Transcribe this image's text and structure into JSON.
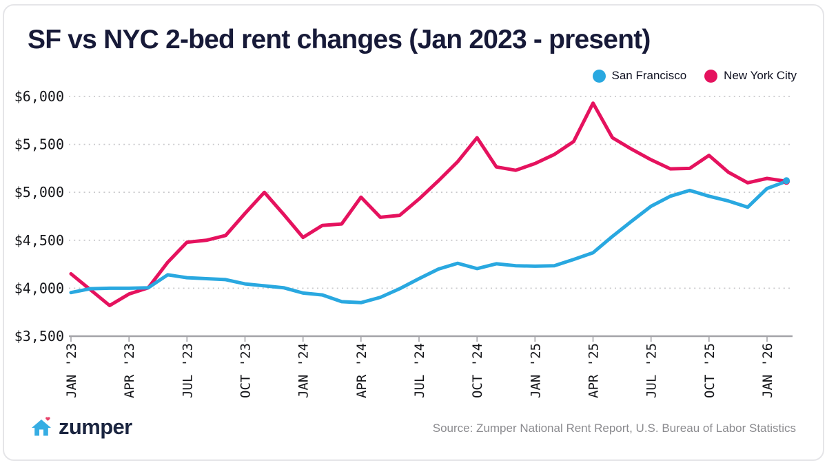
{
  "card": {
    "title": "SF vs NYC 2-bed rent changes (Jan 2023 - present)"
  },
  "legend": {
    "items": [
      {
        "label": "San Francisco",
        "color": "#29a8e0"
      },
      {
        "label": "New York City",
        "color": "#e5125e"
      }
    ]
  },
  "colors": {
    "sf_line": "#29a8e0",
    "nyc_line": "#e5125e",
    "gridline": "#c9c9cc",
    "axis": "#a3a3a8",
    "tick_text": "#141519",
    "title_text": "#171a38",
    "source_text": "#8b8b8f",
    "brand_navy": "#1b2540",
    "logo_house_blue": "#36ade3",
    "logo_heart_pink": "#e8436a"
  },
  "chart_data": {
    "type": "line",
    "title": "SF vs NYC 2-bed rent changes (Jan 2023 - present)",
    "x": [
      "Jan '23",
      "Feb '23",
      "Mar '23",
      "Apr '23",
      "May '23",
      "Jun '23",
      "Jul '23",
      "Aug '23",
      "Sep '23",
      "Oct '23",
      "Nov '23",
      "Dec '23",
      "Jan '24",
      "Feb '24",
      "Mar '24",
      "Apr '24",
      "May '24",
      "Jun '24",
      "Jul '24",
      "Aug '24",
      "Sep '24",
      "Oct '24",
      "Nov '24",
      "Dec '24",
      "Jan '25",
      "Feb '25",
      "Mar '25",
      "Apr '25",
      "May '25",
      "Jun '25",
      "Jul '25",
      "Aug '25",
      "Sep '25",
      "Oct '25",
      "Nov '25",
      "Dec '25",
      "Jan '26",
      "Feb '26"
    ],
    "x_tick_labels": [
      "JAN '23",
      "APR '23",
      "JUL '23",
      "OCT '23",
      "JAN '24",
      "APR '24",
      "JUL '24",
      "OCT '24",
      "JAN '25",
      "APR '25",
      "JUL '25",
      "OCT '25",
      "JAN '26"
    ],
    "x_tick_month_indices": [
      0,
      3,
      6,
      9,
      12,
      15,
      18,
      21,
      24,
      27,
      30,
      33,
      36
    ],
    "ylim": [
      3500,
      6000
    ],
    "y_tick_values": [
      3500,
      4000,
      4500,
      5000,
      5500,
      6000
    ],
    "y_tick_labels": [
      "$3,500",
      "$4,000",
      "$4,500",
      "$5,000",
      "$5,500",
      "$6,000"
    ],
    "grid": "dotted-horizontal",
    "legend_position": "top-right",
    "series": [
      {
        "name": "New York City",
        "color": "#e5125e",
        "values": [
          4150,
          3985,
          3820,
          3940,
          4005,
          4270,
          4480,
          4500,
          4550,
          4780,
          5000,
          4770,
          4530,
          4655,
          4670,
          4950,
          4740,
          4760,
          4930,
          5120,
          5320,
          5570,
          5265,
          5230,
          5300,
          5395,
          5530,
          5930,
          5570,
          5450,
          5340,
          5245,
          5250,
          5385,
          5210,
          5100,
          5145,
          5115
        ]
      },
      {
        "name": "San Francisco",
        "color": "#29a8e0",
        "values": [
          3955,
          3995,
          4000,
          4000,
          4005,
          4140,
          4110,
          4100,
          4090,
          4045,
          4025,
          4005,
          3950,
          3930,
          3860,
          3850,
          3905,
          3995,
          4100,
          4200,
          4260,
          4205,
          4255,
          4235,
          4230,
          4235,
          4300,
          4370,
          4540,
          4700,
          4855,
          4960,
          5020,
          4960,
          4910,
          4845,
          5040,
          5115
        ]
      }
    ]
  },
  "footer": {
    "brand": "zumper",
    "source": "Source: Zumper National Rent Report, U.S. Bureau of Labor Statistics"
  }
}
